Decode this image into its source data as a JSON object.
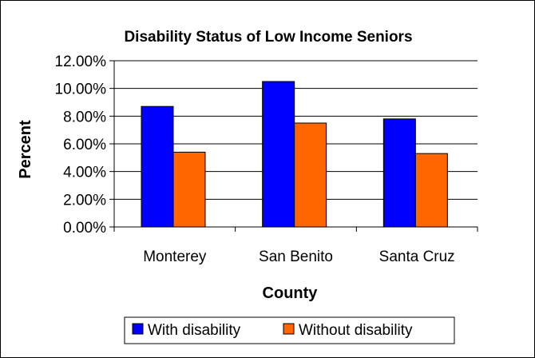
{
  "chart_data": {
    "type": "bar",
    "title": "Disability Status of Low Income Seniors",
    "xlabel": "County",
    "ylabel": "Percent",
    "categories": [
      "Monterey",
      "San Benito",
      "Santa Cruz"
    ],
    "series": [
      {
        "name": "With disability",
        "values": [
          0.087,
          0.105,
          0.078
        ],
        "color": "#0000ff"
      },
      {
        "name": "Without disability",
        "values": [
          0.054,
          0.075,
          0.053
        ],
        "color": "#ff6600"
      }
    ],
    "ylim": [
      0,
      0.12
    ],
    "yticks": [
      "0.00%",
      "2.00%",
      "4.00%",
      "6.00%",
      "8.00%",
      "10.00%",
      "12.00%"
    ],
    "grid": true,
    "legend_position": "bottom"
  }
}
